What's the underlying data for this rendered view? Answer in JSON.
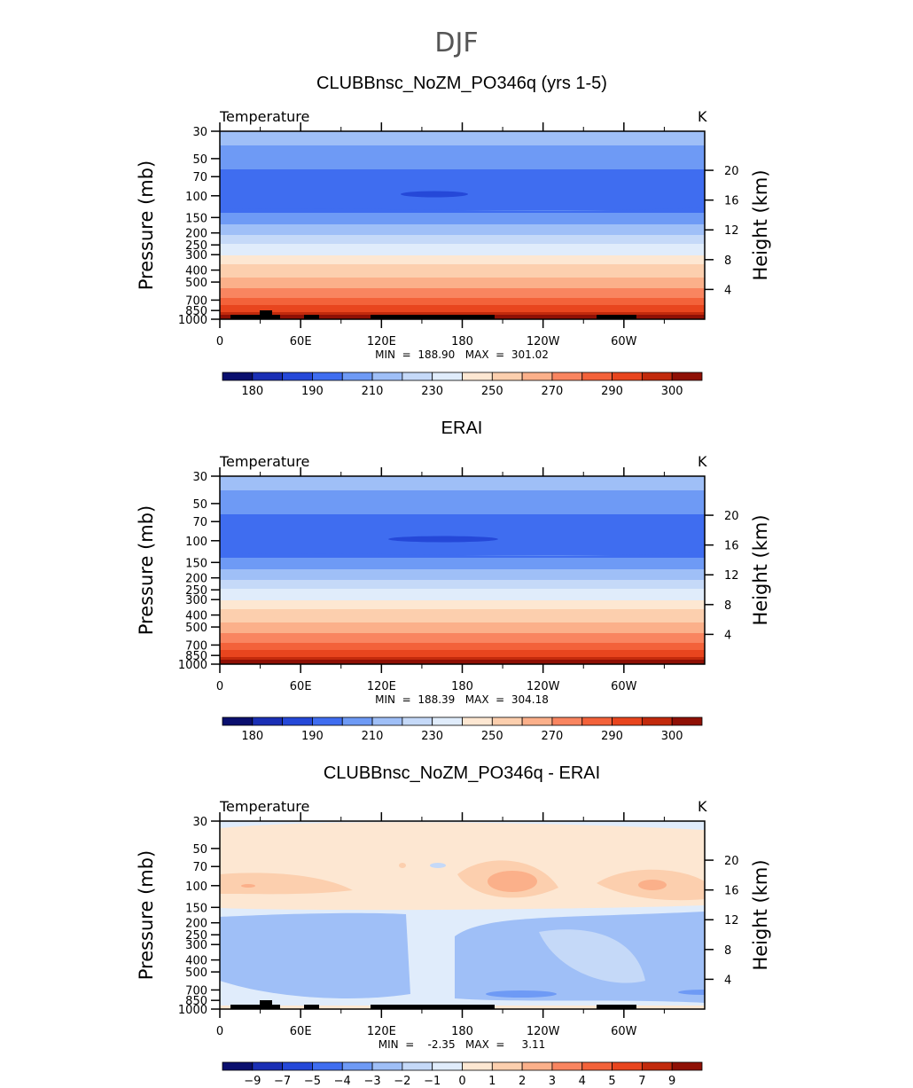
{
  "chart_data": {
    "type": "heatmap",
    "title": "DJF",
    "x_tick_labels": [
      "0",
      "60E",
      "120E",
      "180",
      "120W",
      "60W"
    ],
    "x_ticks_deg": [
      0,
      60,
      120,
      180,
      240,
      300
    ],
    "xlim": [
      0,
      360
    ],
    "pressure_ticks": [
      "30",
      "50",
      "70",
      "100",
      "150",
      "200",
      "250",
      "300",
      "400",
      "500",
      "700",
      "850",
      "1000"
    ],
    "pressure_tick_values": [
      30,
      50,
      70,
      100,
      150,
      200,
      250,
      300,
      400,
      500,
      700,
      850,
      1000
    ],
    "ylim_mb": [
      1000,
      30
    ],
    "y_scale": "log",
    "height_ticks": [
      "4",
      "8",
      "12",
      "16",
      "20"
    ],
    "height_tick_values_km": [
      4,
      8,
      12,
      16,
      20
    ],
    "ylabel_left": "Pressure  (mb)",
    "ylabel_right": "Height  (km)",
    "panels": [
      {
        "title": "CLUBBnsc_NoZM_PO346q (yrs 1-5)",
        "variable": "Temperature",
        "units": "K",
        "min_max_text": "MIN  =  188.90   MAX  =  301.02",
        "min": 188.9,
        "max": 301.02,
        "colorbar_labels": [
          "180",
          "190",
          "210",
          "230",
          "250",
          "270",
          "290",
          "300"
        ],
        "colorbar_label_slots": [
          1,
          3,
          5,
          7,
          9,
          11,
          13,
          15
        ],
        "colorbar_colors": [
          "#0a0f6e",
          "#1a2fb5",
          "#2548d8",
          "#3f6df0",
          "#6e9af5",
          "#9fbff7",
          "#c5d9f8",
          "#e0ecfb",
          "#fde7d2",
          "#fccfae",
          "#fbb08a",
          "#f98560",
          "#f3623a",
          "#e8451e",
          "#c22a0c",
          "#8f1005"
        ]
      },
      {
        "title": "ERAI",
        "variable": "Temperature",
        "units": "K",
        "min_max_text": "MIN  =  188.39   MAX  =  304.18",
        "min": 188.39,
        "max": 304.18,
        "colorbar_labels": [
          "180",
          "190",
          "210",
          "230",
          "250",
          "270",
          "290",
          "300"
        ],
        "colorbar_label_slots": [
          1,
          3,
          5,
          7,
          9,
          11,
          13,
          15
        ],
        "colorbar_colors": [
          "#0a0f6e",
          "#1a2fb5",
          "#2548d8",
          "#3f6df0",
          "#6e9af5",
          "#9fbff7",
          "#c5d9f8",
          "#e0ecfb",
          "#fde7d2",
          "#fccfae",
          "#fbb08a",
          "#f98560",
          "#f3623a",
          "#e8451e",
          "#c22a0c",
          "#8f1005"
        ]
      },
      {
        "title": "CLUBBnsc_NoZM_PO346q - ERAI",
        "variable": "Temperature",
        "units": "K",
        "min_max_text": "MIN  =    -2.35   MAX  =     3.11",
        "min": -2.35,
        "max": 3.11,
        "colorbar_labels": [
          "−9",
          "−7",
          "−5",
          "−4",
          "−3",
          "−2",
          "−1",
          "0",
          "1",
          "2",
          "3",
          "4",
          "5",
          "7",
          "9"
        ],
        "colorbar_label_slots": [
          1,
          2,
          3,
          4,
          5,
          6,
          7,
          8,
          9,
          10,
          11,
          12,
          13,
          14,
          15
        ],
        "colorbar_colors": [
          "#0a0f6e",
          "#1a2fb5",
          "#2548d8",
          "#3f6df0",
          "#6e9af5",
          "#9fbff7",
          "#c5d9f8",
          "#e0ecfb",
          "#fde7d2",
          "#fccfae",
          "#fbb08a",
          "#f98560",
          "#f3623a",
          "#e8451e",
          "#c22a0c",
          "#8f1005"
        ]
      }
    ]
  }
}
